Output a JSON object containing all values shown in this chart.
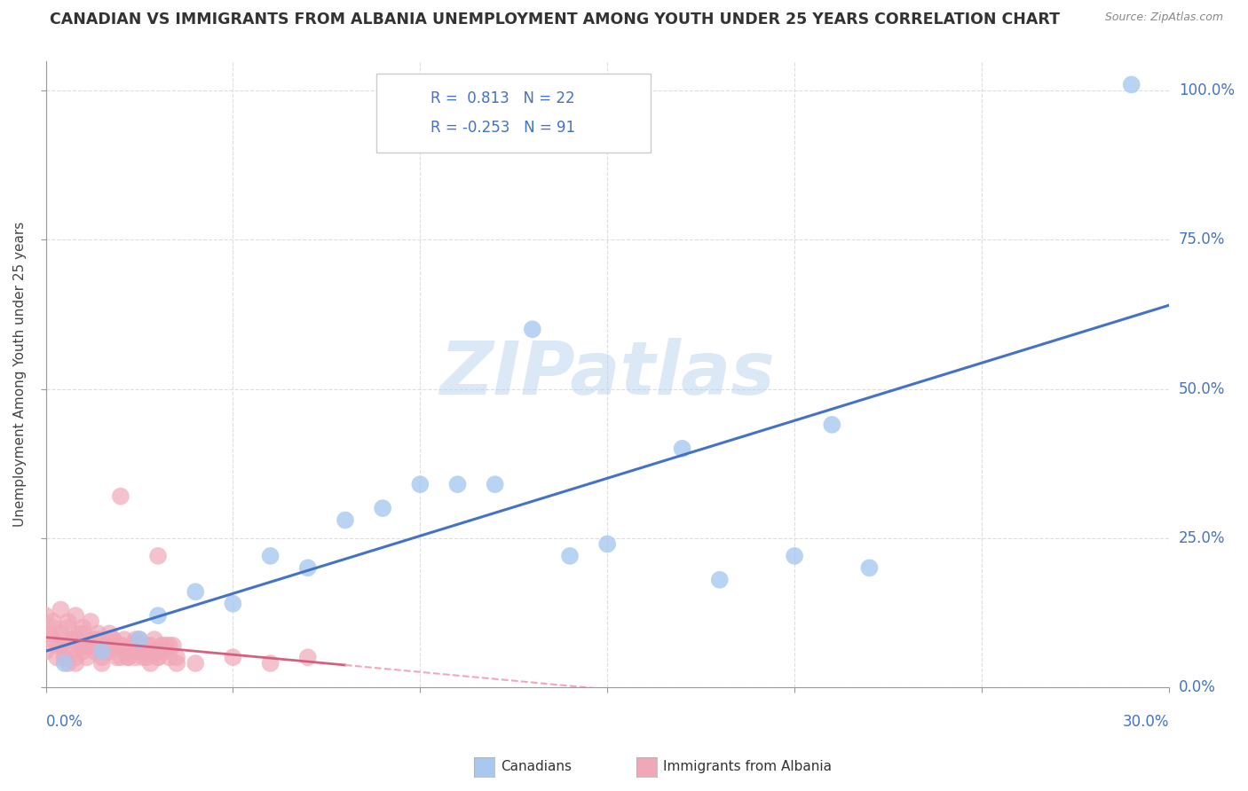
{
  "title": "CANADIAN VS IMMIGRANTS FROM ALBANIA UNEMPLOYMENT AMONG YOUTH UNDER 25 YEARS CORRELATION CHART",
  "source": "Source: ZipAtlas.com",
  "ylabel": "Unemployment Among Youth under 25 years",
  "ytick_labels": [
    "0.0%",
    "25.0%",
    "50.0%",
    "75.0%",
    "100.0%"
  ],
  "ytick_values": [
    0.0,
    0.25,
    0.5,
    0.75,
    1.0
  ],
  "xlim": [
    0.0,
    0.3
  ],
  "ylim": [
    0.0,
    1.05
  ],
  "watermark": "ZIPatlas",
  "canadian_color": "#a8c8f0",
  "albanian_color": "#f0a8b8",
  "trendline_canadian_color": "#4472c4",
  "trendline_albanian_solid_color": "#d46080",
  "trendline_albanian_dash_color": "#f0a8b8",
  "canadians_x": [
    0.005,
    0.015,
    0.025,
    0.03,
    0.04,
    0.05,
    0.06,
    0.07,
    0.08,
    0.09,
    0.1,
    0.11,
    0.12,
    0.13,
    0.14,
    0.15,
    0.17,
    0.18,
    0.2,
    0.21,
    0.22,
    0.29
  ],
  "canadians_y": [
    0.04,
    0.06,
    0.08,
    0.12,
    0.16,
    0.14,
    0.22,
    0.2,
    0.28,
    0.3,
    0.34,
    0.34,
    0.34,
    0.6,
    0.22,
    0.24,
    0.4,
    0.18,
    0.22,
    0.44,
    0.2,
    1.01
  ],
  "albanians_x": [
    0.0,
    0.002,
    0.003,
    0.004,
    0.005,
    0.006,
    0.007,
    0.008,
    0.009,
    0.01,
    0.011,
    0.012,
    0.013,
    0.014,
    0.015,
    0.016,
    0.017,
    0.018,
    0.019,
    0.02,
    0.021,
    0.022,
    0.023,
    0.024,
    0.025,
    0.026,
    0.027,
    0.028,
    0.029,
    0.03,
    0.031,
    0.032,
    0.033,
    0.034,
    0.035,
    0.002,
    0.004,
    0.006,
    0.008,
    0.01,
    0.012,
    0.014,
    0.016,
    0.018,
    0.02,
    0.022,
    0.024,
    0.026,
    0.028,
    0.03,
    0.001,
    0.003,
    0.005,
    0.007,
    0.009,
    0.011,
    0.013,
    0.015,
    0.017,
    0.019,
    0.021,
    0.023,
    0.025,
    0.027,
    0.029,
    0.031,
    0.033,
    0.0,
    0.002,
    0.004,
    0.006,
    0.008,
    0.01,
    0.012,
    0.035,
    0.04,
    0.05,
    0.06,
    0.07,
    0.02,
    0.03,
    0.015,
    0.025,
    0.005,
    0.01,
    0.02,
    0.03,
    0.008,
    0.016,
    0.024,
    0.032
  ],
  "albanians_y": [
    0.06,
    0.08,
    0.05,
    0.07,
    0.06,
    0.04,
    0.08,
    0.05,
    0.07,
    0.06,
    0.05,
    0.07,
    0.06,
    0.08,
    0.05,
    0.07,
    0.06,
    0.08,
    0.05,
    0.07,
    0.06,
    0.05,
    0.07,
    0.06,
    0.08,
    0.05,
    0.07,
    0.04,
    0.06,
    0.05,
    0.07,
    0.06,
    0.05,
    0.07,
    0.04,
    0.1,
    0.09,
    0.11,
    0.08,
    0.1,
    0.07,
    0.09,
    0.06,
    0.08,
    0.07,
    0.05,
    0.08,
    0.06,
    0.07,
    0.05,
    0.09,
    0.07,
    0.08,
    0.06,
    0.09,
    0.07,
    0.08,
    0.06,
    0.09,
    0.07,
    0.08,
    0.06,
    0.07,
    0.05,
    0.08,
    0.06,
    0.07,
    0.12,
    0.11,
    0.13,
    0.1,
    0.12,
    0.09,
    0.11,
    0.05,
    0.04,
    0.05,
    0.04,
    0.05,
    0.32,
    0.22,
    0.04,
    0.06,
    0.05,
    0.07,
    0.05,
    0.06,
    0.04,
    0.06,
    0.05,
    0.07
  ],
  "trendline_albanian_solid_end_x": 0.08,
  "legend_r1_text": "R =  0.813   N = 22",
  "legend_r2_text": "R = -0.253   N = 91",
  "legend_label1": "Canadians",
  "legend_label2": "Immigrants from Albania"
}
